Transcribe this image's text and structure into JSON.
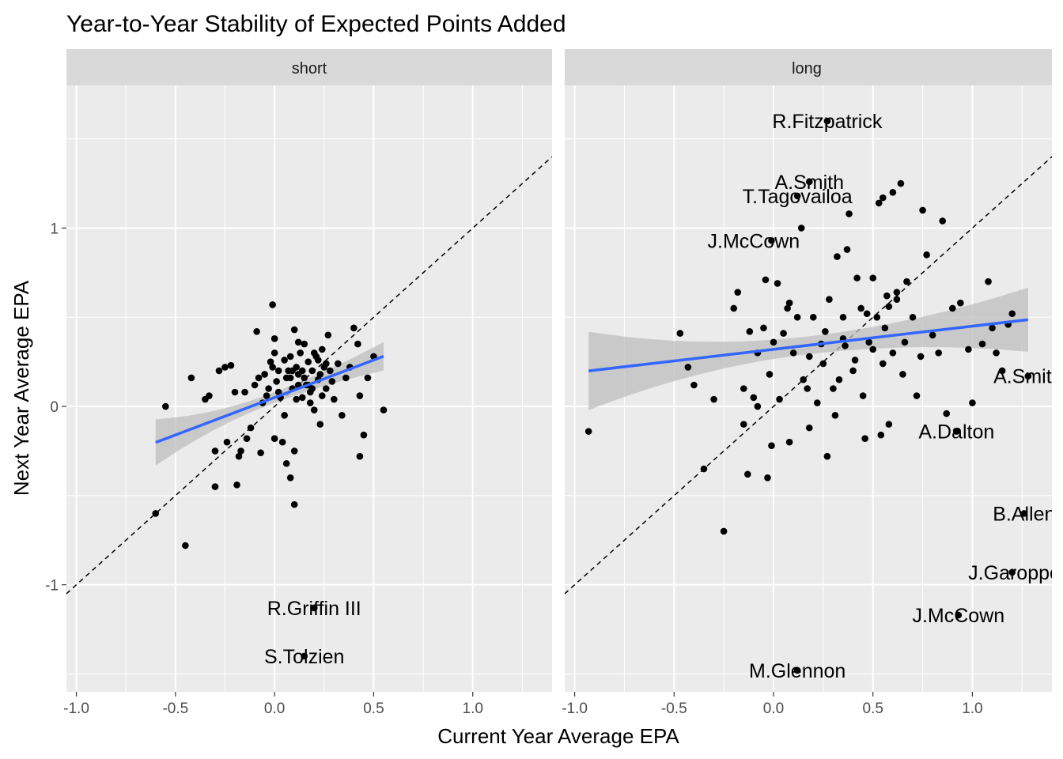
{
  "chart_data": {
    "type": "scatter",
    "title": "Year-to-Year Stability of Expected Points Added",
    "xlabel": "Current Year Average EPA",
    "ylabel": "Next Year Average EPA",
    "xlim": [
      -1.05,
      1.4
    ],
    "ylim": [
      -1.6,
      1.8
    ],
    "x_ticks": [
      -1.0,
      -0.5,
      0.0,
      0.5,
      1.0
    ],
    "x_tick_labels": [
      "-1.0",
      "-0.5",
      "0.0",
      "0.5",
      "1.0"
    ],
    "y_ticks": [
      -1,
      0,
      1
    ],
    "y_tick_labels": [
      "-1",
      "0",
      "1"
    ],
    "reference_line": "y = x (dashed)",
    "colors": {
      "panel_bg": "#ebebeb",
      "grid": "#ffffff",
      "strip_bg": "#d9d9d9",
      "points": "#000000",
      "fit_line": "#3366ff",
      "ribbon": "#bdbdbd"
    },
    "facets": [
      {
        "name": "short",
        "fit": {
          "x_range": [
            -0.6,
            0.55
          ],
          "intercept": 0.05,
          "slope": 0.42,
          "ci_at_min": 0.13,
          "ci_at_mid": 0.03,
          "ci_at_max": 0.08
        },
        "points": [
          [
            -0.6,
            -0.6
          ],
          [
            -0.55,
            0.0
          ],
          [
            -0.45,
            -0.78
          ],
          [
            -0.42,
            0.16
          ],
          [
            -0.35,
            0.04
          ],
          [
            -0.33,
            0.06
          ],
          [
            -0.3,
            -0.45
          ],
          [
            -0.3,
            -0.25
          ],
          [
            -0.28,
            0.2
          ],
          [
            -0.25,
            0.22
          ],
          [
            -0.24,
            -0.2
          ],
          [
            -0.22,
            0.23
          ],
          [
            -0.2,
            0.08
          ],
          [
            -0.19,
            -0.44
          ],
          [
            -0.18,
            -0.28
          ],
          [
            -0.17,
            -0.25
          ],
          [
            -0.15,
            0.08
          ],
          [
            -0.14,
            -0.18
          ],
          [
            -0.12,
            -0.12
          ],
          [
            -0.1,
            0.12
          ],
          [
            -0.09,
            0.42
          ],
          [
            -0.08,
            0.16
          ],
          [
            -0.07,
            -0.26
          ],
          [
            -0.06,
            0.02
          ],
          [
            -0.05,
            0.18
          ],
          [
            -0.04,
            0.06
          ],
          [
            -0.03,
            0.1
          ],
          [
            -0.02,
            0.25
          ],
          [
            -0.01,
            0.57
          ],
          [
            0.0,
            0.3
          ],
          [
            0.0,
            -0.18
          ],
          [
            0.0,
            0.38
          ],
          [
            0.01,
            0.14
          ],
          [
            0.02,
            0.2
          ],
          [
            0.03,
            0.05
          ],
          [
            0.04,
            -0.2
          ],
          [
            0.05,
            -0.05
          ],
          [
            0.06,
            0.16
          ],
          [
            0.07,
            0.2
          ],
          [
            0.08,
            0.28
          ],
          [
            0.09,
            0.1
          ],
          [
            0.1,
            -0.25
          ],
          [
            0.1,
            0.43
          ],
          [
            0.11,
            0.22
          ],
          [
            0.12,
            0.18
          ],
          [
            0.13,
            0.3
          ],
          [
            0.14,
            0.05
          ],
          [
            0.15,
            0.35
          ],
          [
            0.16,
            0.12
          ],
          [
            0.17,
            0.25
          ],
          [
            0.18,
            0.08
          ],
          [
            0.19,
            0.2
          ],
          [
            0.2,
            -0.02
          ],
          [
            0.21,
            0.28
          ],
          [
            0.22,
            0.15
          ],
          [
            0.23,
            -0.1
          ],
          [
            0.24,
            0.32
          ],
          [
            0.25,
            0.22
          ],
          [
            0.26,
            0.1
          ],
          [
            0.27,
            0.4
          ],
          [
            0.28,
            0.2
          ],
          [
            0.3,
            0.04
          ],
          [
            0.32,
            0.24
          ],
          [
            0.34,
            -0.05
          ],
          [
            0.36,
            0.16
          ],
          [
            0.38,
            0.22
          ],
          [
            0.4,
            0.44
          ],
          [
            0.42,
            0.35
          ],
          [
            0.43,
            0.06
          ],
          [
            0.43,
            -0.28
          ],
          [
            0.45,
            -0.16
          ],
          [
            0.47,
            0.16
          ],
          [
            0.5,
            0.28
          ],
          [
            0.55,
            -0.02
          ],
          [
            -0.01,
            0.22
          ],
          [
            0.02,
            0.08
          ],
          [
            0.05,
            0.26
          ],
          [
            0.08,
            0.16
          ],
          [
            0.11,
            0.04
          ],
          [
            0.14,
            0.2
          ],
          [
            0.17,
            0.12
          ],
          [
            0.2,
            0.3
          ],
          [
            0.23,
            0.18
          ],
          [
            0.26,
            0.24
          ],
          [
            0.29,
            0.14
          ],
          [
            0.06,
            -0.32
          ],
          [
            0.08,
            -0.4
          ],
          [
            0.1,
            -0.55
          ],
          [
            0.12,
            0.36
          ],
          [
            0.18,
            0.02
          ],
          [
            0.22,
            0.26
          ],
          [
            0.24,
            0.06
          ],
          [
            0.15,
            0.16
          ],
          [
            0.12,
            0.12
          ],
          [
            0.19,
            0.1
          ],
          [
            0.09,
            0.2
          ],
          [
            0.2,
            -1.13
          ],
          [
            0.15,
            -1.4
          ]
        ],
        "labels": [
          {
            "text": "R.Griffin III",
            "x": 0.2,
            "y": -1.13
          },
          {
            "text": "S.Tolzien",
            "x": 0.15,
            "y": -1.4
          }
        ]
      },
      {
        "name": "long",
        "fit": {
          "x_range": [
            -0.93,
            1.28
          ],
          "intercept": 0.32,
          "slope": 0.13,
          "ci_at_min": 0.22,
          "ci_at_mid": 0.05,
          "ci_at_max": 0.18
        },
        "points": [
          [
            -0.93,
            -0.14
          ],
          [
            -0.47,
            0.41
          ],
          [
            -0.43,
            0.22
          ],
          [
            -0.4,
            0.12
          ],
          [
            -0.35,
            -0.35
          ],
          [
            -0.3,
            0.04
          ],
          [
            -0.25,
            -0.7
          ],
          [
            -0.2,
            0.55
          ],
          [
            -0.18,
            0.64
          ],
          [
            -0.15,
            0.1
          ],
          [
            -0.15,
            -0.1
          ],
          [
            -0.13,
            -0.38
          ],
          [
            -0.12,
            0.42
          ],
          [
            -0.1,
            0.05
          ],
          [
            -0.08,
            0.0
          ],
          [
            -0.05,
            0.44
          ],
          [
            -0.04,
            0.71
          ],
          [
            -0.03,
            -0.4
          ],
          [
            -0.02,
            0.18
          ],
          [
            -0.01,
            -0.22
          ],
          [
            0.0,
            0.36
          ],
          [
            0.02,
            0.69
          ],
          [
            0.03,
            0.04
          ],
          [
            0.05,
            0.41
          ],
          [
            0.07,
            0.55
          ],
          [
            0.08,
            -0.2
          ],
          [
            0.1,
            0.3
          ],
          [
            0.12,
            0.5
          ],
          [
            0.14,
            1.0
          ],
          [
            0.15,
            0.15
          ],
          [
            0.17,
            0.1
          ],
          [
            0.18,
            -0.12
          ],
          [
            0.2,
            0.5
          ],
          [
            0.22,
            0.02
          ],
          [
            0.24,
            0.35
          ],
          [
            0.25,
            0.24
          ],
          [
            0.27,
            -0.28
          ],
          [
            0.28,
            0.6
          ],
          [
            0.3,
            0.1
          ],
          [
            0.32,
            0.84
          ],
          [
            0.33,
            0.15
          ],
          [
            0.35,
            0.5
          ],
          [
            0.37,
            0.88
          ],
          [
            0.38,
            1.08
          ],
          [
            0.4,
            0.2
          ],
          [
            0.42,
            0.72
          ],
          [
            0.45,
            0.06
          ],
          [
            0.47,
            0.52
          ],
          [
            0.48,
            0.36
          ],
          [
            0.5,
            0.72
          ],
          [
            0.52,
            0.5
          ],
          [
            0.53,
            1.14
          ],
          [
            0.55,
            0.24
          ],
          [
            0.57,
            0.62
          ],
          [
            0.58,
            -0.1
          ],
          [
            0.6,
            0.3
          ],
          [
            0.62,
            0.6
          ],
          [
            0.64,
            1.25
          ],
          [
            0.65,
            0.18
          ],
          [
            0.67,
            0.7
          ],
          [
            0.7,
            0.5
          ],
          [
            0.72,
            0.06
          ],
          [
            0.75,
            1.1
          ],
          [
            0.77,
            0.85
          ],
          [
            0.8,
            0.4
          ],
          [
            0.83,
            0.3
          ],
          [
            0.85,
            1.04
          ],
          [
            0.87,
            -0.04
          ],
          [
            0.9,
            0.55
          ],
          [
            0.94,
            0.58
          ],
          [
            0.98,
            0.32
          ],
          [
            1.0,
            0.02
          ],
          [
            1.05,
            0.35
          ],
          [
            1.08,
            0.7
          ],
          [
            1.1,
            0.44
          ],
          [
            1.12,
            0.3
          ],
          [
            1.15,
            0.2
          ],
          [
            1.18,
            0.46
          ],
          [
            1.2,
            0.52
          ],
          [
            0.36,
            0.34
          ],
          [
            0.44,
            0.55
          ],
          [
            0.56,
            0.44
          ],
          [
            0.66,
            0.36
          ],
          [
            0.74,
            0.28
          ],
          [
            0.58,
            0.56
          ],
          [
            0.62,
            0.64
          ],
          [
            0.5,
            0.32
          ],
          [
            0.41,
            0.26
          ],
          [
            -0.08,
            0.3
          ],
          [
            0.08,
            0.58
          ],
          [
            0.18,
            0.28
          ],
          [
            0.26,
            0.42
          ],
          [
            0.31,
            -0.05
          ],
          [
            0.46,
            -0.18
          ],
          [
            0.54,
            -0.16
          ],
          [
            0.35,
            0.38
          ],
          [
            0.6,
            1.2
          ],
          [
            0.55,
            1.17
          ],
          [
            0.27,
            1.6
          ],
          [
            0.18,
            1.26
          ],
          [
            0.12,
            1.18
          ],
          [
            -0.01,
            0.93
          ],
          [
            1.28,
            0.17
          ],
          [
            0.92,
            -0.14
          ],
          [
            1.26,
            -0.6
          ],
          [
            1.2,
            -0.93
          ],
          [
            0.93,
            -1.17
          ],
          [
            0.12,
            -1.48
          ]
        ],
        "labels": [
          {
            "text": "R.Fitzpatrick",
            "x": 0.27,
            "y": 1.6
          },
          {
            "text": "A.Smith",
            "x": 0.18,
            "y": 1.26
          },
          {
            "text": "T.Tagovailoa",
            "x": 0.12,
            "y": 1.18
          },
          {
            "text": "J.McCown",
            "x": -0.1,
            "y": 0.93
          },
          {
            "text": "A.Smith",
            "x": 1.28,
            "y": 0.17
          },
          {
            "text": "A.Dalton",
            "x": 0.92,
            "y": -0.14
          },
          {
            "text": "B.Allen",
            "x": 1.26,
            "y": -0.6
          },
          {
            "text": "J.Garoppolo",
            "x": 1.25,
            "y": -0.93
          },
          {
            "text": "J.McCown",
            "x": 0.93,
            "y": -1.17
          },
          {
            "text": "M.Glennon",
            "x": 0.12,
            "y": -1.48
          }
        ]
      }
    ]
  }
}
